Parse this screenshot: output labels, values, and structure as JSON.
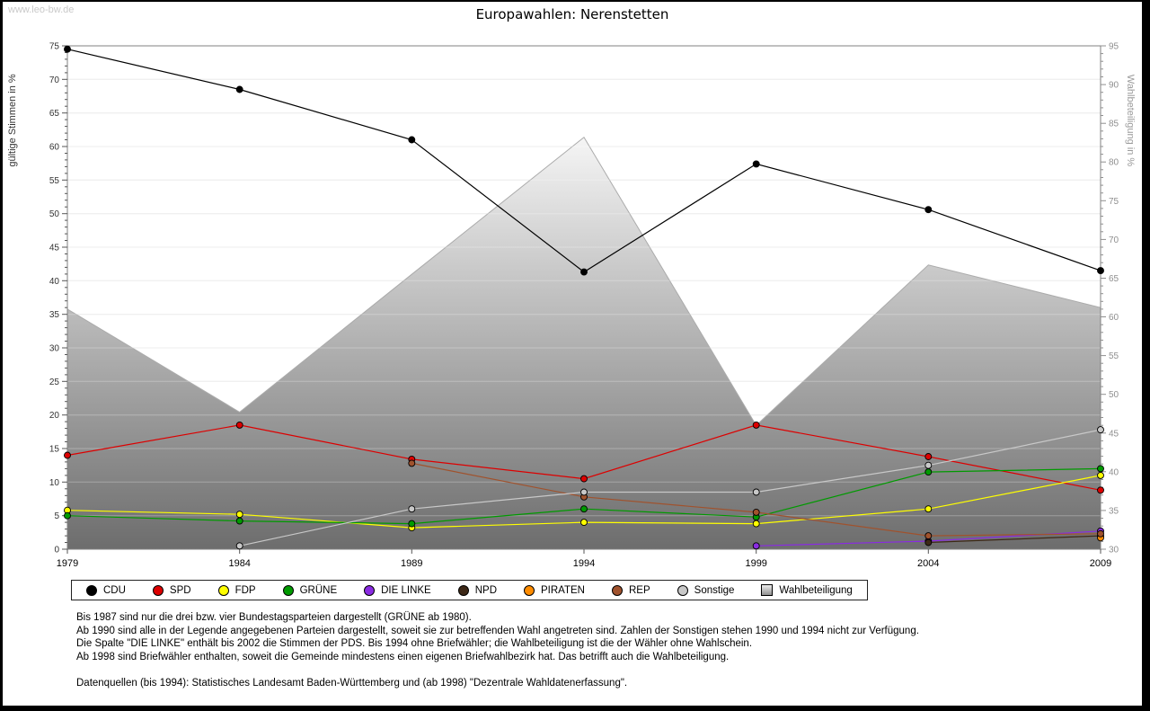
{
  "watermark": "www.leo-bw.de",
  "title": "Europawahlen: Nerenstetten",
  "chart_data": {
    "type": "line",
    "title": "Europawahlen: Nerenstetten",
    "x": [
      1979,
      1984,
      1989,
      1994,
      1999,
      2004,
      2009
    ],
    "left_axis": {
      "label": "gültige Stimmen in %",
      "min": 0,
      "max": 75,
      "tick": 5
    },
    "right_axis": {
      "label": "Wahlbeteiligung in %",
      "min": 30,
      "max": 95,
      "tick": 5
    },
    "grid": true,
    "legend_position": "bottom",
    "series": [
      {
        "name": "CDU",
        "color": "#000000",
        "axis": "left",
        "values": [
          74.5,
          68.5,
          61.0,
          41.3,
          57.4,
          50.6,
          41.5
        ]
      },
      {
        "name": "SPD",
        "color": "#dd0000",
        "axis": "left",
        "values": [
          14.0,
          18.5,
          13.4,
          10.5,
          18.5,
          13.8,
          8.8
        ]
      },
      {
        "name": "FDP",
        "color": "#ffff00",
        "axis": "left",
        "values": [
          5.8,
          5.2,
          3.2,
          4.0,
          3.8,
          6.0,
          11.0
        ]
      },
      {
        "name": "GRÜNE",
        "color": "#009a00",
        "axis": "left",
        "values": [
          5.0,
          4.2,
          3.8,
          6.0,
          4.8,
          11.5,
          12.0
        ]
      },
      {
        "name": "DIE LINKE",
        "color": "#8a2be2",
        "axis": "left",
        "values": [
          null,
          null,
          null,
          null,
          0.5,
          1.2,
          2.7
        ]
      },
      {
        "name": "NPD",
        "color": "#3d2817",
        "axis": "left",
        "values": [
          null,
          null,
          null,
          null,
          null,
          1.0,
          2.0
        ]
      },
      {
        "name": "PIRATEN",
        "color": "#ff8c00",
        "axis": "left",
        "values": [
          null,
          null,
          null,
          null,
          null,
          null,
          1.7
        ]
      },
      {
        "name": "REP",
        "color": "#a0522d",
        "axis": "left",
        "values": [
          null,
          null,
          12.8,
          7.8,
          5.5,
          2.0,
          2.3
        ]
      },
      {
        "name": "Sonstige",
        "color": "#c8c8c8",
        "axis": "left",
        "values": [
          null,
          0.5,
          6.0,
          8.5,
          8.5,
          12.5,
          17.8
        ]
      }
    ],
    "turnout_series": {
      "name": "Wahlbeteiligung",
      "axis": "right",
      "style": "area-gray-gradient",
      "values": [
        61.0,
        47.7,
        65.5,
        83.2,
        46.0,
        66.7,
        61.2
      ]
    }
  },
  "notes": [
    "Bis 1987 sind nur die drei bzw. vier Bundestagsparteien dargestellt (GRÜNE ab 1980).",
    "Ab 1990 sind alle in der Legende angegebenen Parteien dargestellt, soweit sie zur betreffenden Wahl angetreten sind. Zahlen der Sonstigen stehen 1990 und 1994 nicht zur Verfügung.",
    "Die Spalte \"DIE LINKE\" enthält bis 2002 die Stimmen der PDS. Bis 1994 ohne Briefwähler; die Wahlbeteiligung ist die der Wähler ohne Wahlschein.",
    "Ab 1998 sind Briefwähler enthalten, soweit die Gemeinde mindestens einen eigenen Briefwahlbezirk hat. Das betrifft auch die Wahlbeteiligung."
  ],
  "datasource": "Datenquellen (bis 1994): Statistisches Landesamt Baden-Württemberg und (ab 1998) \"Dezentrale Wahldatenerfassung\"."
}
